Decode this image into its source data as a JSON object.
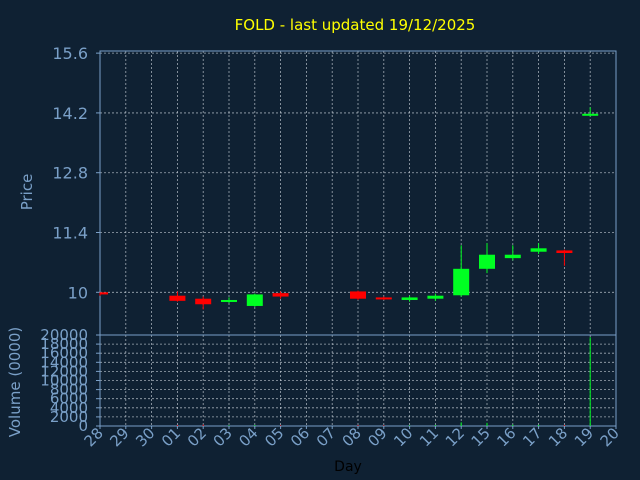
{
  "chart_data": {
    "type": "candlestick",
    "title": "FOLD - last updated 19/12/2025",
    "xlabel": "Day",
    "price_panel": {
      "ylabel": "Price",
      "ylim": [
        9.0,
        15.65
      ],
      "yticks": [
        10,
        11.4,
        12.8,
        14.2,
        15.6
      ],
      "ytick_labels": [
        "10",
        "11.4",
        "12.8",
        "14.2",
        "15.6"
      ],
      "grid": true
    },
    "volume_panel": {
      "ylabel": "Volume (0000)",
      "ylim": [
        0,
        20000
      ],
      "yticks": [
        0,
        2000,
        4000,
        6000,
        8000,
        10000,
        12000,
        14000,
        16000,
        18000,
        20000
      ],
      "ytick_labels": [
        "0",
        "2000",
        "4000",
        "6000",
        "8000",
        "10000",
        "12000",
        "14000",
        "16000",
        "18000",
        "20000"
      ],
      "grid": true
    },
    "categories": [
      "28",
      "29",
      "30",
      "01",
      "02",
      "03",
      "04",
      "05",
      "06",
      "07",
      "08",
      "09",
      "10",
      "11",
      "12",
      "15",
      "16",
      "17",
      "18",
      "19",
      "20"
    ],
    "candles": [
      {
        "day": "28",
        "open": 10.0,
        "close": 9.95,
        "high": 10.0,
        "low": 9.92
      },
      {
        "day": "01",
        "open": 9.92,
        "close": 9.8,
        "high": 10.02,
        "low": 9.78
      },
      {
        "day": "02",
        "open": 9.85,
        "close": 9.72,
        "high": 9.9,
        "low": 9.6
      },
      {
        "day": "03",
        "open": 9.8,
        "close": 9.82,
        "high": 9.88,
        "low": 9.75
      },
      {
        "day": "04",
        "open": 9.68,
        "close": 9.95,
        "high": 9.97,
        "low": 9.66
      },
      {
        "day": "05",
        "open": 9.98,
        "close": 9.9,
        "high": 10.02,
        "low": 9.85
      },
      {
        "day": "08",
        "open": 10.02,
        "close": 9.85,
        "high": 10.04,
        "low": 9.82
      },
      {
        "day": "09",
        "open": 9.88,
        "close": 9.85,
        "high": 9.9,
        "low": 9.82
      },
      {
        "day": "10",
        "open": 9.82,
        "close": 9.88,
        "high": 9.92,
        "low": 9.78
      },
      {
        "day": "11",
        "open": 9.85,
        "close": 9.92,
        "high": 9.97,
        "low": 9.8
      },
      {
        "day": "12",
        "open": 9.93,
        "close": 10.55,
        "high": 11.1,
        "low": 9.9
      },
      {
        "day": "15",
        "open": 10.55,
        "close": 10.88,
        "high": 11.15,
        "low": 10.45
      },
      {
        "day": "16",
        "open": 10.8,
        "close": 10.88,
        "high": 11.1,
        "low": 10.75
      },
      {
        "day": "17",
        "open": 10.95,
        "close": 11.03,
        "high": 11.15,
        "low": 10.9
      },
      {
        "day": "18",
        "open": 10.98,
        "close": 10.92,
        "high": 11.0,
        "low": 10.62
      },
      {
        "day": "19",
        "open": 14.14,
        "close": 14.18,
        "high": 14.33,
        "low": 14.12
      }
    ],
    "volume": [
      {
        "day": "28",
        "value": 0
      },
      {
        "day": "01",
        "value": 200,
        "direction": "down"
      },
      {
        "day": "02",
        "value": 300,
        "direction": "down"
      },
      {
        "day": "03",
        "value": 150,
        "direction": "up"
      },
      {
        "day": "04",
        "value": 200,
        "direction": "up"
      },
      {
        "day": "05",
        "value": 150,
        "direction": "down"
      },
      {
        "day": "08",
        "value": 200,
        "direction": "down"
      },
      {
        "day": "09",
        "value": 150,
        "direction": "down"
      },
      {
        "day": "10",
        "value": 150,
        "direction": "up"
      },
      {
        "day": "11",
        "value": 200,
        "direction": "up"
      },
      {
        "day": "12",
        "value": 800,
        "direction": "up"
      },
      {
        "day": "15",
        "value": 700,
        "direction": "up"
      },
      {
        "day": "16",
        "value": 300,
        "direction": "up"
      },
      {
        "day": "17",
        "value": 250,
        "direction": "up"
      },
      {
        "day": "18",
        "value": 200,
        "direction": "down"
      },
      {
        "day": "19",
        "value": 19500,
        "direction": "up"
      }
    ],
    "colors": {
      "background": "#0f2133",
      "axis_text": "#7aa0c8",
      "title": "#ffff00",
      "grid": "#d0d8e0",
      "up": "#00ff22",
      "down": "#ff0000",
      "frame": "#7aa0c8",
      "xlabel": "#000000"
    }
  }
}
